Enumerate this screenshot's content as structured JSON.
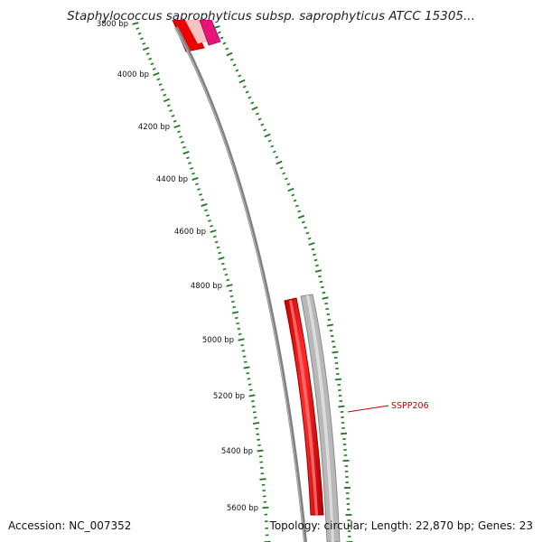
{
  "title": "Staphylococcus saprophyticus subsp. saprophyticus ATCC 15305...",
  "footer": {
    "accession": "Accession: NC_007352",
    "topology": "Topology: circular; Length: 22,870 bp; Genes: 23"
  },
  "map": {
    "bp_labels": [
      {
        "bp": 3800,
        "text": "3800 bp"
      },
      {
        "bp": 4000,
        "text": "4000 bp"
      },
      {
        "bp": 4200,
        "text": "4200 bp"
      },
      {
        "bp": 4400,
        "text": "4400 bp"
      },
      {
        "bp": 4600,
        "text": "4600 bp"
      },
      {
        "bp": 4800,
        "text": "4800 bp"
      },
      {
        "bp": 5000,
        "text": "5000 bp"
      },
      {
        "bp": 5200,
        "text": "5200 bp"
      },
      {
        "bp": 5400,
        "text": "5400 bp"
      },
      {
        "bp": 5600,
        "text": "5600 bp"
      }
    ],
    "genes": [
      {
        "label": "SSPP206",
        "label_color": "#cc0000"
      }
    ],
    "colors": {
      "backbone": "#808080",
      "tick": "#1a7a1a",
      "gene_red": "#ee0000",
      "gene_gray": "#b8b8b8",
      "gene_pink": "#e8147a",
      "gene_label": "#cc0000"
    }
  }
}
